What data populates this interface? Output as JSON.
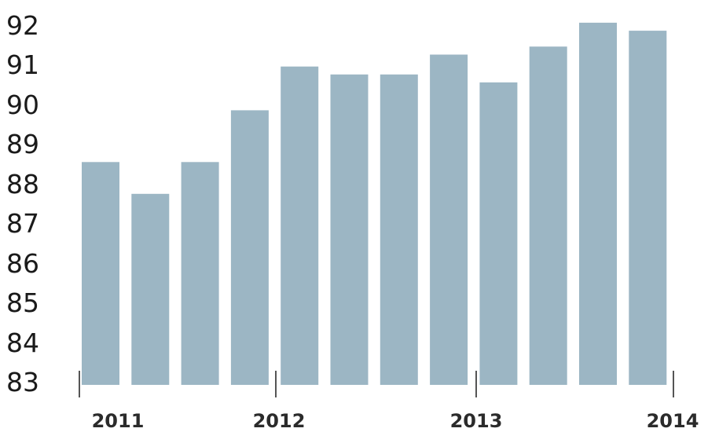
{
  "chart_data": {
    "type": "bar",
    "categories": [
      "",
      "",
      "",
      "",
      "",
      "",
      "",
      "",
      "",
      "",
      "",
      ""
    ],
    "values": [
      88.6,
      87.8,
      88.6,
      89.9,
      91.0,
      90.8,
      90.8,
      91.3,
      90.6,
      91.5,
      92.1,
      91.9
    ],
    "title": "",
    "xlabel": "",
    "ylabel": "",
    "ylim": [
      83,
      92
    ],
    "yticks": [
      "92",
      "91",
      "90",
      "89",
      "88",
      "87",
      "86",
      "85",
      "84",
      "83"
    ],
    "xtick_labels": [
      "2011",
      "2012",
      "2013",
      "2014"
    ],
    "grid": false,
    "bar_color": "#9cb6c4",
    "tick_color": "#555555"
  }
}
